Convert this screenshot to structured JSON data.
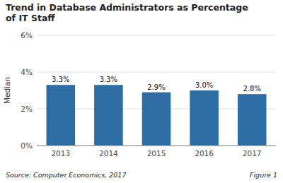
{
  "chart_data": {
    "type": "bar",
    "title": "Trend in Database Administrators as Percentage\nof IT Staff",
    "categories": [
      "2013",
      "2014",
      "2015",
      "2016",
      "2017"
    ],
    "values": [
      3.3,
      3.3,
      2.9,
      3.0,
      2.8
    ],
    "value_labels": [
      "3.3%",
      "3.3%",
      "2.9%",
      "3.0%",
      "2.8%"
    ],
    "data_labels": true,
    "color": "#2E6DA4",
    "ylabel": "Median",
    "ylim": [
      0,
      6
    ],
    "yticks": [
      {
        "value": 0,
        "label": "0%"
      },
      {
        "value": 2,
        "label": "2%"
      },
      {
        "value": 4,
        "label": "4%"
      },
      {
        "value": 6,
        "label": "6%"
      }
    ],
    "grid": true,
    "source": "Source: Computer Economics, 2017",
    "figure_label": "Figure 1"
  }
}
